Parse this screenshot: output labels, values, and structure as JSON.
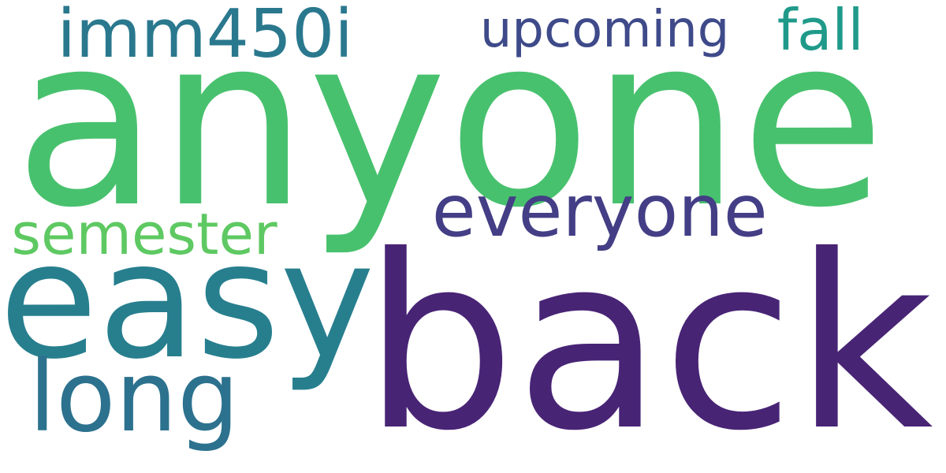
{
  "words": {
    "anyone": {
      "text": "anyone",
      "color": "#48c16e"
    },
    "back": {
      "text": "back",
      "color": "#482475"
    },
    "easy": {
      "text": "easy",
      "color": "#277f8e"
    },
    "long": {
      "text": "long",
      "color": "#2c728e"
    },
    "everyone": {
      "text": "everyone",
      "color": "#433e85"
    },
    "semester": {
      "text": "semester",
      "color": "#5ec962"
    },
    "imm450i": {
      "text": "imm450i",
      "color": "#2a788e"
    },
    "upcoming": {
      "text": "upcoming",
      "color": "#3e4a89"
    },
    "fall": {
      "text": "fall",
      "color": "#1f9a8a"
    }
  }
}
